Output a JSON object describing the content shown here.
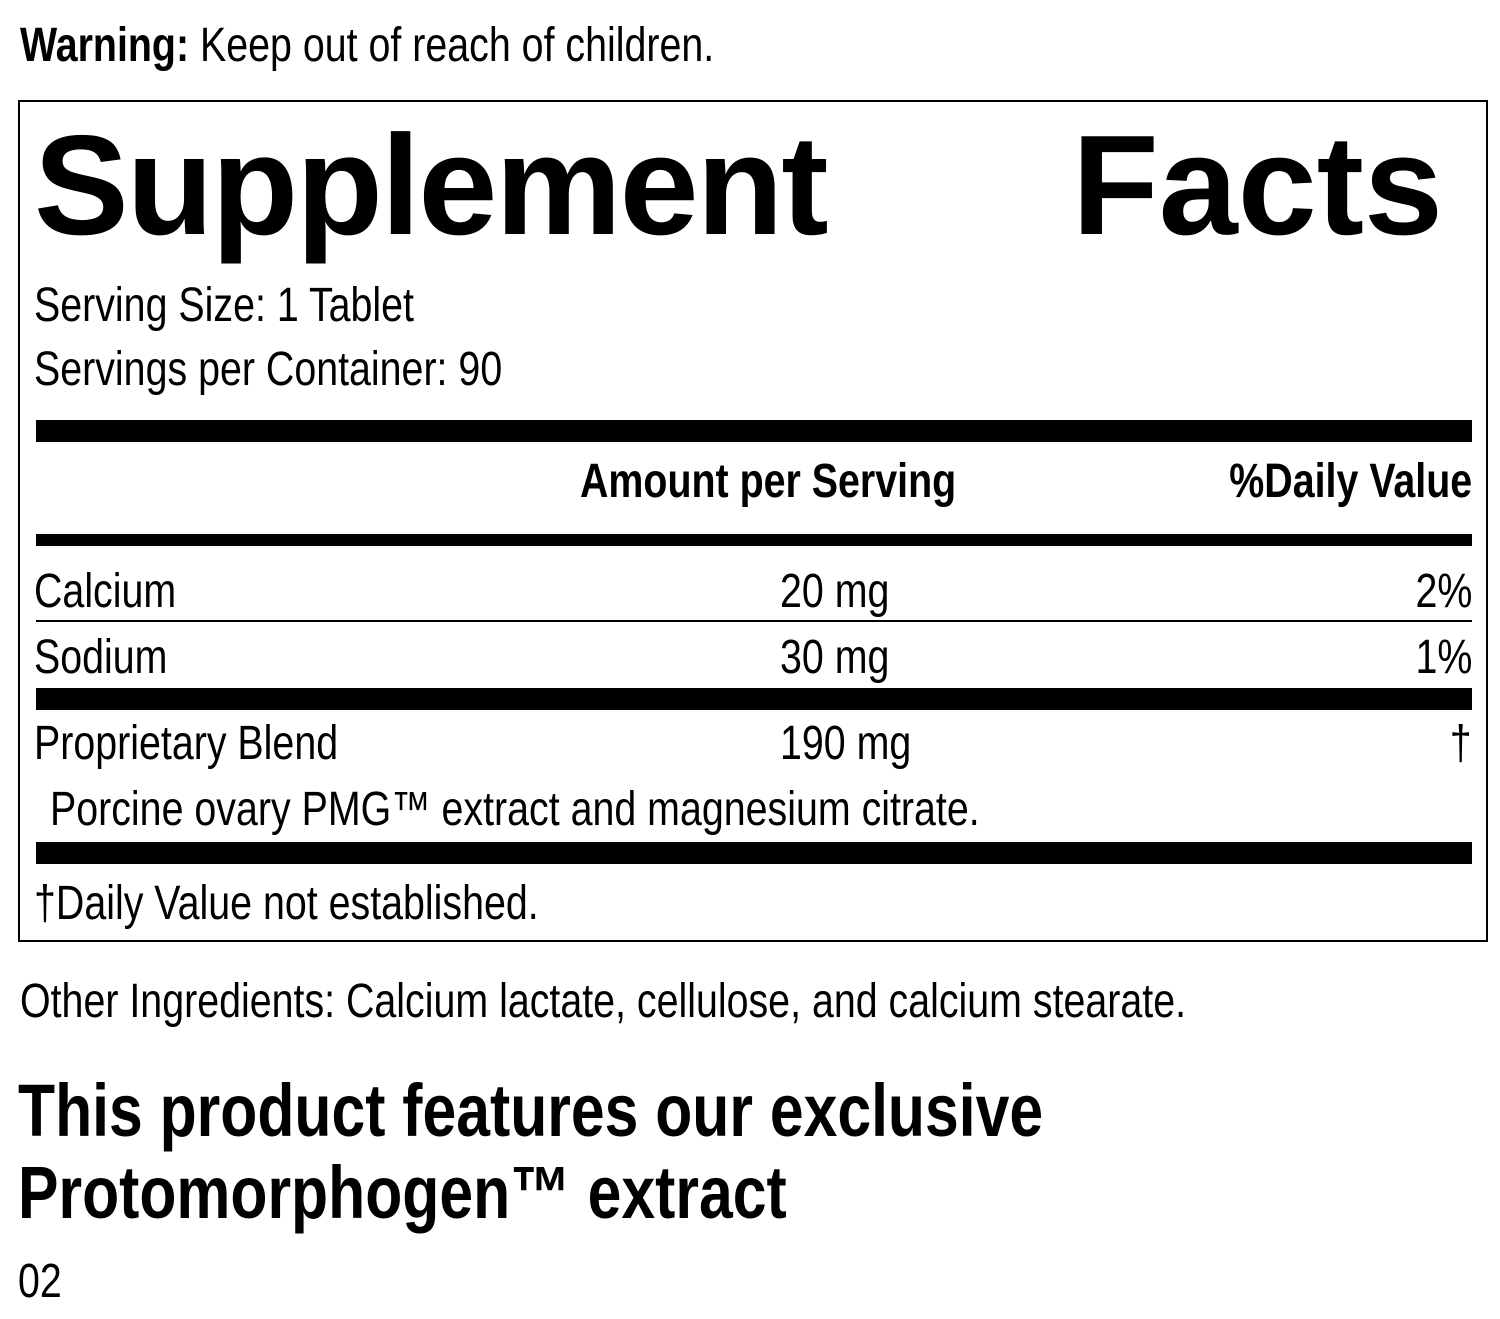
{
  "warning": {
    "label": "Warning:",
    "text": " Keep out of reach of children."
  },
  "facts": {
    "title_word1": "Supplement",
    "title_word2": "Facts",
    "serving_size": "Serving Size: 1 Tablet",
    "servings_per_container": "Servings per Container: 90",
    "headers": {
      "amount": "Amount per Serving",
      "dv": "%Daily Value"
    },
    "rows": [
      {
        "name": "Calcium",
        "amount": "20 mg",
        "dv": "2%"
      },
      {
        "name": "Sodium",
        "amount": "30 mg",
        "dv": "1%"
      },
      {
        "name": "Proprietary Blend",
        "amount": "190 mg",
        "dv": "†"
      }
    ],
    "blend_detail": "Porcine ovary PMG™ extract and magnesium citrate.",
    "footnote": "†Daily Value not established."
  },
  "other_ingredients": "Other Ingredients: Calcium lactate, cellulose, and calcium stearate.",
  "feature_line1": "This product features our exclusive",
  "feature_line2": "Protomorphogen™ extract",
  "code": "02"
}
